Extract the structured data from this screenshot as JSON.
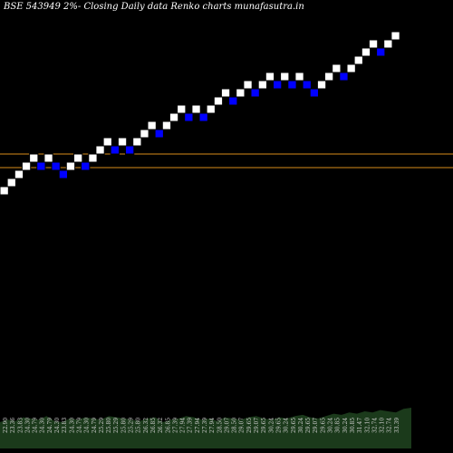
{
  "title": "BSE 543949 2%-  Closing Daily data  Renko  charts munafasutra.in",
  "colors": {
    "background": "#000000",
    "up_brick": "#ffffff",
    "down_brick": "#0000ff",
    "brick_border": "#000000",
    "resistance_line": "#d98c1a",
    "volume": "#1b3a1b",
    "labels": "#cfcfcf"
  },
  "chart_data": {
    "type": "renko",
    "box_size_label": "2%",
    "bricks": [
      "up",
      "up",
      "up",
      "up",
      "up",
      "down",
      "up",
      "down",
      "down",
      "up",
      "up",
      "down",
      "up",
      "up",
      "up",
      "down",
      "up",
      "down",
      "up",
      "up",
      "up",
      "down",
      "up",
      "up",
      "up",
      "down",
      "up",
      "down",
      "up",
      "up",
      "up",
      "down",
      "up",
      "up",
      "down",
      "up",
      "up",
      "down",
      "up",
      "down",
      "up",
      "down",
      "down",
      "up",
      "up",
      "up",
      "down",
      "up",
      "up",
      "up",
      "up",
      "down",
      "up",
      "up"
    ],
    "lines": [
      {
        "name": "upper",
        "price": 25.5
      },
      {
        "name": "lower",
        "price": 24.5
      }
    ],
    "price_labels": [
      "22.90",
      "23.36",
      "23.83",
      "24.30",
      "24.79",
      "24.30",
      "24.79",
      "24.30",
      "23.83",
      "24.30",
      "24.79",
      "24.30",
      "24.79",
      "25.29",
      "25.80",
      "25.29",
      "25.80",
      "25.29",
      "25.80",
      "26.32",
      "26.85",
      "26.32",
      "26.85",
      "27.39",
      "27.94",
      "27.39",
      "27.94",
      "27.39",
      "27.94",
      "28.50",
      "29.07",
      "28.50",
      "29.07",
      "29.65",
      "29.07",
      "29.65",
      "30.24",
      "29.65",
      "30.24",
      "29.65",
      "30.24",
      "29.65",
      "29.07",
      "29.65",
      "30.24",
      "30.85",
      "30.24",
      "30.85",
      "31.47",
      "32.10",
      "32.74",
      "32.10",
      "32.74",
      "33.39"
    ],
    "volume": [
      22,
      24,
      23,
      26,
      25,
      24,
      27,
      23,
      22,
      25,
      24,
      26,
      25,
      24,
      27,
      26,
      25,
      24,
      23,
      25,
      26,
      22,
      24,
      25,
      27,
      26,
      24,
      25,
      23,
      26,
      25,
      24,
      26,
      27,
      25,
      24,
      26,
      25,
      27,
      28,
      26,
      25,
      27,
      29,
      28,
      30,
      29,
      31,
      30,
      32,
      31,
      30,
      33,
      34
    ]
  }
}
